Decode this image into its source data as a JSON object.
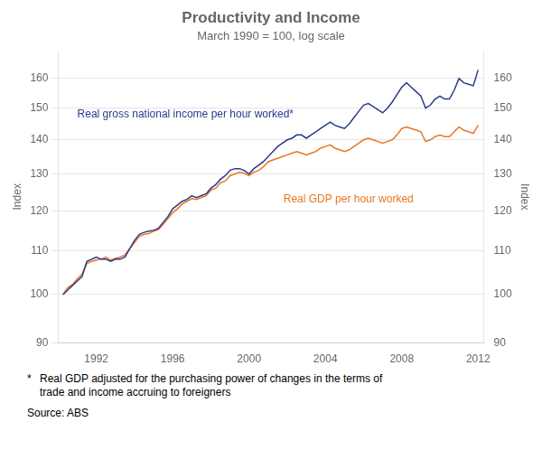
{
  "chart_data": {
    "type": "line",
    "title": "Productivity and Income",
    "subtitle": "March 1990 = 100, log scale",
    "ylabel": "Index",
    "y2label": "Index",
    "log": "y",
    "grid": "y",
    "x": [
      1990.25,
      1990.5,
      1990.75,
      1991,
      1991.25,
      1991.5,
      1991.75,
      1992,
      1992.25,
      1992.5,
      1992.75,
      1993,
      1993.25,
      1993.5,
      1993.75,
      1994,
      1994.25,
      1994.5,
      1994.75,
      1995,
      1995.25,
      1995.5,
      1995.75,
      1996,
      1996.25,
      1996.5,
      1996.75,
      1997,
      1997.25,
      1997.5,
      1997.75,
      1998,
      1998.25,
      1998.5,
      1998.75,
      1999,
      1999.25,
      1999.5,
      1999.75,
      2000,
      2000.25,
      2000.5,
      2000.75,
      2001,
      2001.25,
      2001.5,
      2001.75,
      2002,
      2002.25,
      2002.5,
      2002.75,
      2003,
      2003.25,
      2003.5,
      2003.75,
      2004,
      2004.25,
      2004.5,
      2004.75,
      2005,
      2005.25,
      2005.5,
      2005.75,
      2006,
      2006.25,
      2006.5,
      2006.75,
      2007,
      2007.25,
      2007.5,
      2007.75,
      2008,
      2008.25,
      2008.5,
      2008.75,
      2009,
      2009.25,
      2009.5,
      2009.75,
      2010,
      2010.25,
      2010.5,
      2010.75,
      2011,
      2011.25,
      2011.5,
      2011.75,
      2012
    ],
    "series": [
      {
        "color": "#2B3A8C",
        "values": [
          100.0,
          101.0,
          102.0,
          103.0,
          104.0,
          107.5,
          108.0,
          108.5,
          108.0,
          108.0,
          107.5,
          108.0,
          108.0,
          108.5,
          110.5,
          112.5,
          114.0,
          114.5,
          114.8,
          115.0,
          115.5,
          117.0,
          118.5,
          120.5,
          121.5,
          122.5,
          123.0,
          124.0,
          123.5,
          124.0,
          124.5,
          126.0,
          127.0,
          128.5,
          129.5,
          131.0,
          131.5,
          131.5,
          131.0,
          130.0,
          131.5,
          132.5,
          133.5,
          135.0,
          136.5,
          138.0,
          139.0,
          140.0,
          140.5,
          141.5,
          141.5,
          140.5,
          141.5,
          142.5,
          143.5,
          144.5,
          145.5,
          144.5,
          144.0,
          143.5,
          145.0,
          147.0,
          149.0,
          151.0,
          151.5,
          150.5,
          149.5,
          148.5,
          150.0,
          152.0,
          154.5,
          157.0,
          158.5,
          157.0,
          155.5,
          154.0,
          150.0,
          151.0,
          153.0,
          154.0,
          153.0,
          153.0,
          156.0,
          160.0,
          158.5,
          158.0,
          157.5,
          163.0
        ]
      },
      {
        "color": "#E87722",
        "values": [
          100.0,
          101.5,
          102.2,
          103.5,
          104.5,
          107.0,
          107.5,
          107.8,
          108.0,
          108.5,
          107.8,
          108.2,
          108.5,
          109.0,
          110.5,
          112.0,
          113.5,
          114.0,
          114.2,
          114.8,
          115.2,
          116.5,
          118.0,
          119.5,
          120.5,
          121.8,
          122.5,
          123.2,
          123.0,
          123.5,
          124.0,
          125.5,
          126.0,
          127.5,
          128.0,
          129.5,
          130.0,
          130.5,
          130.2,
          129.5,
          130.5,
          131.0,
          132.0,
          133.5,
          134.0,
          134.5,
          135.0,
          135.5,
          136.0,
          136.5,
          136.0,
          135.5,
          136.0,
          136.5,
          137.5,
          138.0,
          138.5,
          137.5,
          137.0,
          136.5,
          137.0,
          138.0,
          139.0,
          140.0,
          140.5,
          140.0,
          139.5,
          139.0,
          139.5,
          140.0,
          141.5,
          143.5,
          144.0,
          143.5,
          143.0,
          142.5,
          139.5,
          140.0,
          141.0,
          141.5,
          141.0,
          141.0,
          142.5,
          144.0,
          143.0,
          142.5,
          142.0,
          144.5
        ]
      }
    ],
    "xlim": [
      1990.0,
      2012.3
    ],
    "xticks": [
      1992,
      1996,
      2000,
      2004,
      2008,
      2012
    ],
    "ylim": [
      90,
      170
    ],
    "yticks": [
      90,
      100,
      110,
      120,
      130,
      140,
      150,
      160
    ],
    "y2lim": [
      90,
      170
    ],
    "y2ticks": [
      90,
      100,
      110,
      120,
      130,
      140,
      150,
      160
    ],
    "annotations": [
      {
        "text": "Real gross national income per hour worked*",
        "x": 1991.0,
        "y": 148,
        "color": "#2B3A8C"
      },
      {
        "text": "Real GDP per hour worked",
        "x": 2001.8,
        "y": 123,
        "color": "#E87722"
      }
    ],
    "footnote_mark": "*",
    "footnote": [
      "Real GDP adjusted for the purchasing power of changes in the terms of",
      "trade and income accruing to foreigners"
    ],
    "source": "Source: ABS"
  }
}
